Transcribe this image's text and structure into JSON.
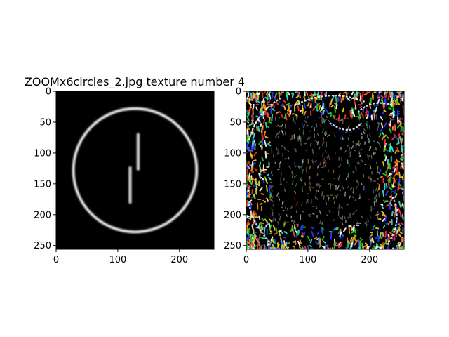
{
  "figure": {
    "title": "ZOOMx6circles_2.jpg texture number 4"
  },
  "chart_data": [
    {
      "type": "heatmap",
      "image_content": "grayscale circle with two vertical bars",
      "colors": {
        "background": "#000000",
        "foreground": "#ffffff"
      },
      "circle": {
        "center": [
          128,
          128
        ],
        "radius": 100
      },
      "bars": [
        {
          "x": 133,
          "y_start": 68,
          "y_end": 128
        },
        {
          "x": 120,
          "y_start": 122,
          "y_end": 182
        }
      ],
      "xlim": [
        0,
        256
      ],
      "ylim": [
        256,
        0
      ],
      "xticks": [
        "0",
        "100",
        "200"
      ],
      "xtick_values": [
        0,
        100,
        200
      ],
      "yticks": [
        "0",
        "50",
        "100",
        "150",
        "200",
        "250"
      ],
      "ytick_values": [
        0,
        50,
        100,
        150,
        200,
        250
      ]
    },
    {
      "type": "heatmap",
      "image_content": "multicolor noisy texture on black background",
      "colors": {
        "background": "#000000",
        "accents": [
          "#ffffff",
          "#2040ff",
          "#ff3030",
          "#20d020",
          "#f0d020",
          "#40e0e0",
          "#ff9020"
        ]
      },
      "xlim": [
        0,
        256
      ],
      "ylim": [
        256,
        0
      ],
      "xticks": [
        "0",
        "100",
        "200"
      ],
      "xtick_values": [
        0,
        100,
        200
      ],
      "yticks": [
        "0",
        "50",
        "100",
        "150",
        "200",
        "250"
      ],
      "ytick_values": [
        0,
        50,
        100,
        150,
        200,
        250
      ]
    }
  ]
}
